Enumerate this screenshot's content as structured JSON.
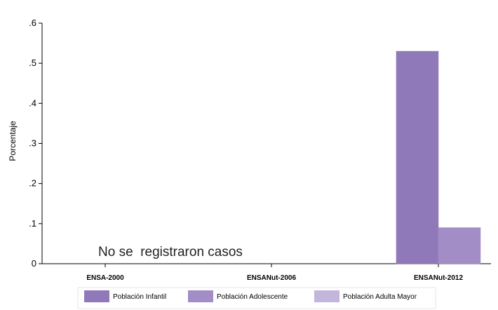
{
  "chart_data": {
    "type": "bar",
    "ylabel": "Porcentaje",
    "ylim": [
      0,
      0.6
    ],
    "yticks": [
      {
        "value": 0,
        "label": "0"
      },
      {
        "value": 0.1,
        "label": ".1"
      },
      {
        "value": 0.2,
        "label": ".2"
      },
      {
        "value": 0.3,
        "label": ".3"
      },
      {
        "value": 0.4,
        "label": ".4"
      },
      {
        "value": 0.5,
        "label": ".5"
      },
      {
        "value": 0.6,
        "label": ".6"
      }
    ],
    "categories": [
      "ENSA-2000",
      "ENSANut-2006",
      "ENSANut-2012"
    ],
    "series": [
      {
        "name": "Población Infantil",
        "color": "#9079b8",
        "values": [
          null,
          null,
          0.53
        ]
      },
      {
        "name": "Población Adolescente",
        "color": "#a28dc6",
        "values": [
          null,
          null,
          0.09
        ]
      },
      {
        "name": "Población Adulta Mayor",
        "color": "#c3b5dc",
        "values": [
          null,
          null,
          null
        ]
      }
    ],
    "annotation": "No se  registraron casos",
    "legend_position": "bottom",
    "grid": false
  }
}
